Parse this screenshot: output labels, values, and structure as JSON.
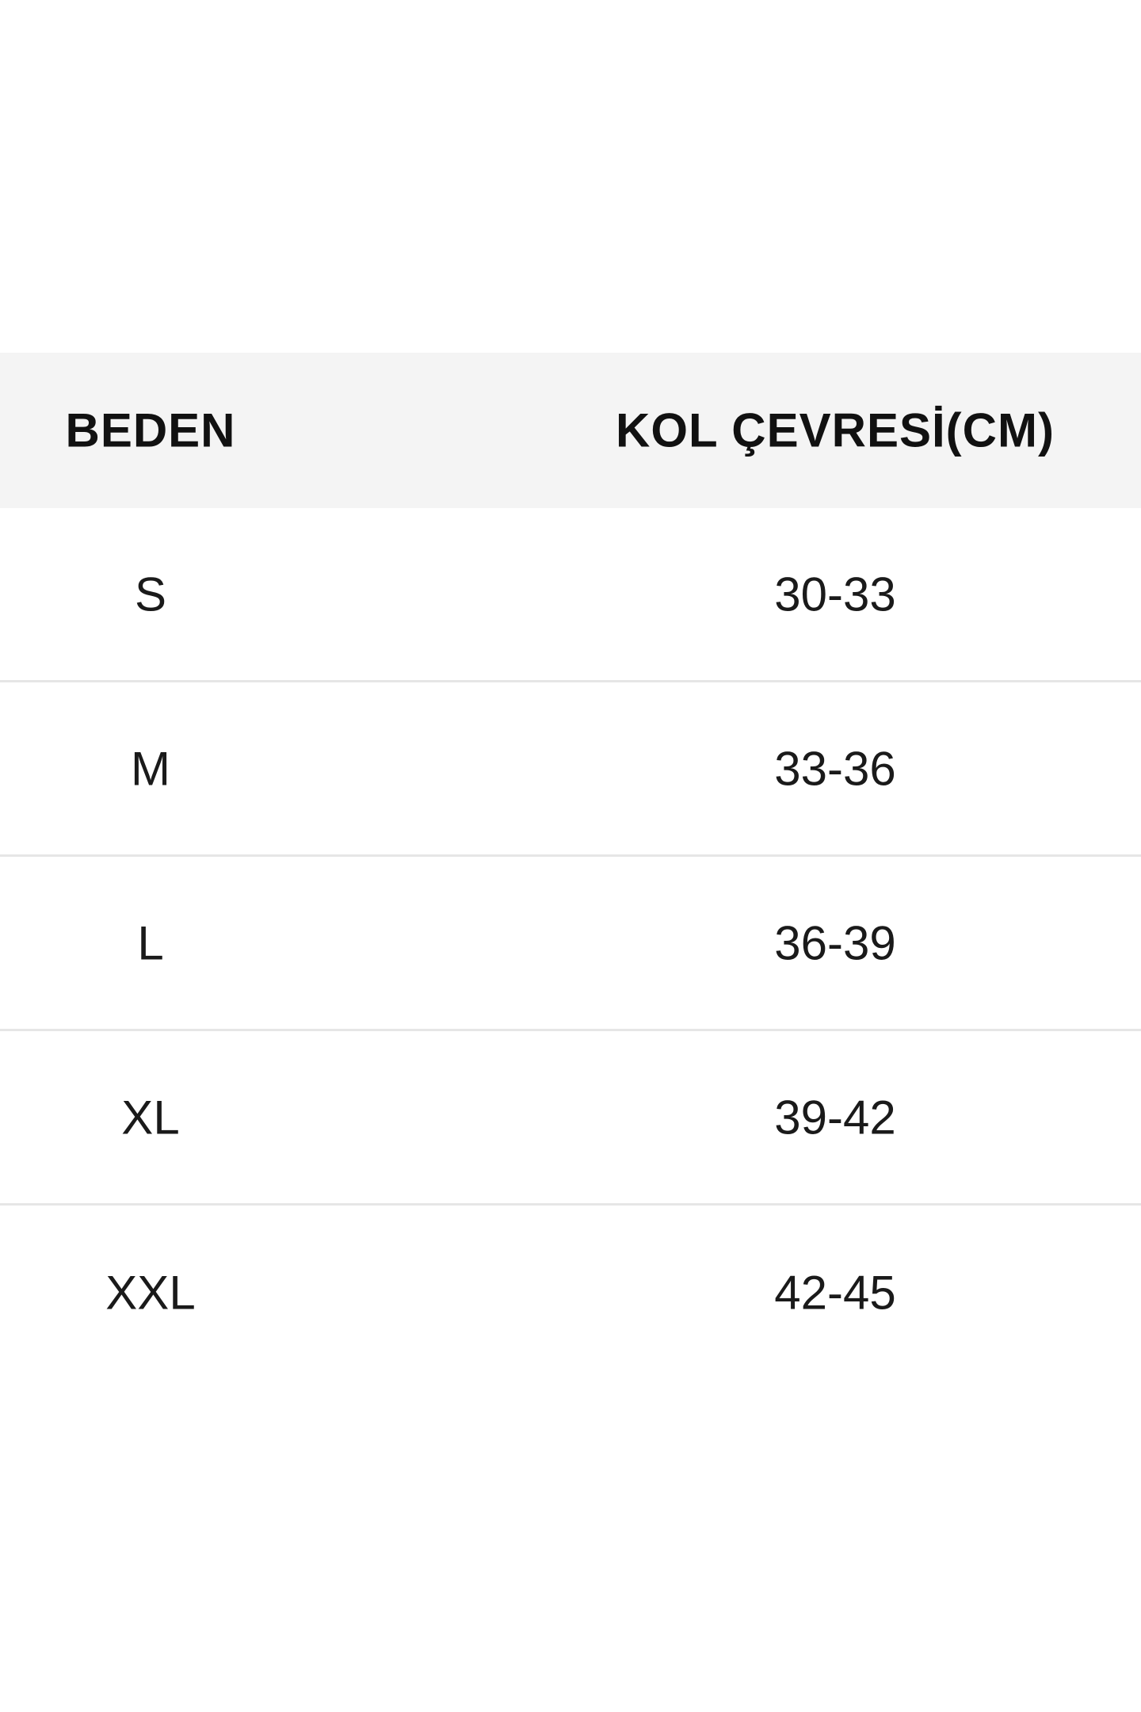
{
  "size_table": {
    "headers": [
      "BEDEN",
      "KOL ÇEVRESİ(CM)"
    ],
    "rows": [
      {
        "size": "S",
        "arm_circumference": "30-33"
      },
      {
        "size": "M",
        "arm_circumference": "33-36"
      },
      {
        "size": "L",
        "arm_circumference": "36-39"
      },
      {
        "size": "XL",
        "arm_circumference": "39-42"
      },
      {
        "size": "XXL",
        "arm_circumference": "42-45"
      }
    ]
  },
  "colors": {
    "header_bg": "#f4f4f4",
    "divider": "#e6e6e6",
    "text": "#111111"
  }
}
